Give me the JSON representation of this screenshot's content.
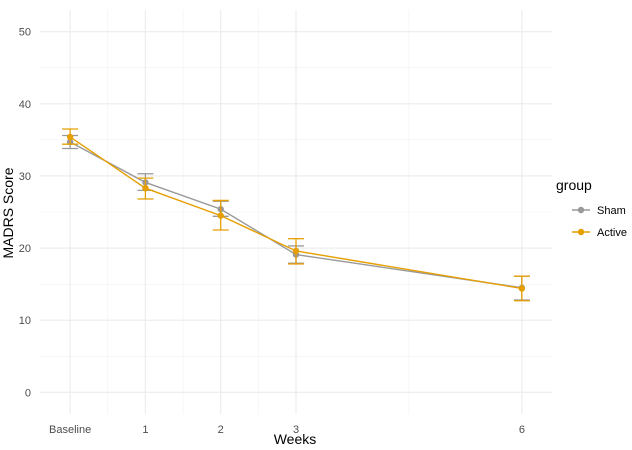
{
  "chart_data": {
    "type": "line",
    "xlabel": "Weeks",
    "ylabel": "MADRS Score",
    "x": [
      "Baseline",
      "1",
      "2",
      "3",
      "6"
    ],
    "x_values": [
      0,
      1,
      2,
      3,
      6
    ],
    "ylim": [
      -3,
      53
    ],
    "y_ticks": [
      0,
      10,
      20,
      30,
      40,
      50
    ],
    "grid": true,
    "legend": {
      "title": "group",
      "position": "right"
    },
    "series": [
      {
        "name": "Sham",
        "color": "#999999",
        "values": [
          34.7,
          29.1,
          25.4,
          19.1,
          14.5
        ],
        "error_low": [
          33.8,
          28.0,
          24.4,
          17.9,
          12.8
        ],
        "error_high": [
          35.6,
          30.3,
          26.5,
          20.3,
          16.1
        ]
      },
      {
        "name": "Active",
        "color": "#E69F00",
        "values": [
          35.4,
          28.3,
          24.5,
          19.6,
          14.4
        ],
        "error_low": [
          34.4,
          26.8,
          22.5,
          17.8,
          12.7
        ],
        "error_high": [
          36.5,
          29.7,
          26.6,
          21.3,
          16.1
        ]
      }
    ]
  }
}
